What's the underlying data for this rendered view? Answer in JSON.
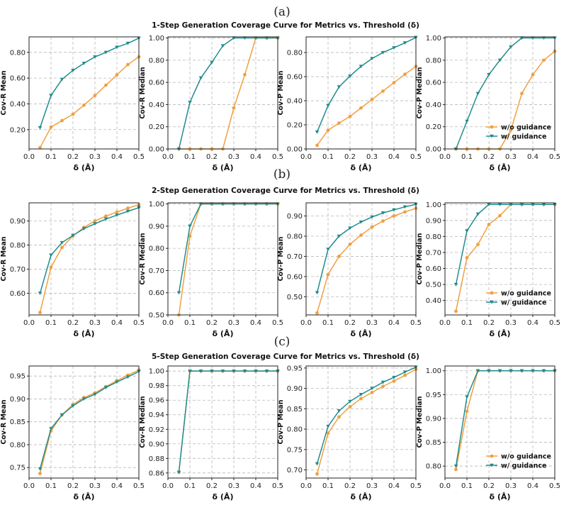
{
  "colors": {
    "without": "#f0a040",
    "with": "#218c8d"
  },
  "legend": [
    "w/o guidance",
    "w/ guidance"
  ],
  "panels": [
    {
      "tag": "(a)",
      "title": "1-Step Generation Coverage Curve for Metrics vs. Threshold (δ)"
    },
    {
      "tag": "(b)",
      "title": "2-Step Generation Coverage Curve for Metrics vs. Threshold (δ)"
    },
    {
      "tag": "(c)",
      "title": "5-Step Generation Coverage Curve for Metrics vs. Threshold (δ)"
    }
  ],
  "chart_data": [
    {
      "row": 0,
      "type": "line",
      "xlabel": "δ (Å)",
      "ylabel": "Cov-R Mean",
      "xlim": [
        0,
        0.5
      ],
      "ylim": [
        0.05,
        0.92
      ],
      "yticks": [
        0.2,
        0.4,
        0.6,
        0.8
      ],
      "ydec": 2,
      "x": [
        0.05,
        0.1,
        0.15,
        0.2,
        0.25,
        0.3,
        0.35,
        0.4,
        0.45,
        0.5
      ],
      "series": [
        {
          "name": "w/o guidance",
          "values": [
            0.06,
            0.22,
            0.27,
            0.32,
            0.39,
            0.465,
            0.545,
            0.625,
            0.705,
            0.765
          ]
        },
        {
          "name": "w/ guidance",
          "values": [
            0.215,
            0.465,
            0.59,
            0.66,
            0.715,
            0.765,
            0.8,
            0.84,
            0.87,
            0.91
          ]
        }
      ]
    },
    {
      "row": 0,
      "type": "line",
      "xlabel": "δ (Å)",
      "ylabel": "Cov-R Median",
      "xlim": [
        0,
        0.5
      ],
      "ylim": [
        0,
        1.01
      ],
      "yticks": [
        0.0,
        0.2,
        0.4,
        0.6,
        0.8,
        1.0
      ],
      "ydec": 2,
      "x": [
        0.05,
        0.1,
        0.15,
        0.2,
        0.25,
        0.3,
        0.35,
        0.4,
        0.45,
        0.5
      ],
      "series": [
        {
          "name": "w/o guidance",
          "values": [
            0,
            0,
            0,
            0,
            0,
            0.37,
            0.67,
            1.0,
            1.0,
            1.0
          ]
        },
        {
          "name": "w/ guidance",
          "values": [
            0,
            0.42,
            0.64,
            0.78,
            0.93,
            1.0,
            1.0,
            1.0,
            1.0,
            1.0
          ]
        }
      ]
    },
    {
      "row": 0,
      "type": "line",
      "xlabel": "δ (Å)",
      "ylabel": "Cov-P Mean",
      "xlim": [
        0,
        0.5
      ],
      "ylim": [
        0,
        0.93
      ],
      "yticks": [
        0.0,
        0.2,
        0.4,
        0.6,
        0.8
      ],
      "ydec": 2,
      "x": [
        0.05,
        0.1,
        0.15,
        0.2,
        0.25,
        0.3,
        0.35,
        0.4,
        0.45,
        0.5
      ],
      "series": [
        {
          "name": "w/o guidance",
          "values": [
            0.03,
            0.155,
            0.215,
            0.27,
            0.34,
            0.41,
            0.48,
            0.55,
            0.62,
            0.685
          ]
        },
        {
          "name": "w/ guidance",
          "values": [
            0.14,
            0.36,
            0.515,
            0.605,
            0.685,
            0.75,
            0.8,
            0.84,
            0.88,
            0.925
          ]
        }
      ]
    },
    {
      "row": 0,
      "type": "line",
      "xlabel": "δ (Å)",
      "ylabel": "Cov-P Median",
      "xlim": [
        0,
        0.5
      ],
      "ylim": [
        0,
        1.01
      ],
      "yticks": [
        0.0,
        0.2,
        0.4,
        0.6,
        0.8,
        1.0
      ],
      "ydec": 2,
      "legend": "lower-right",
      "x": [
        0.05,
        0.1,
        0.15,
        0.2,
        0.25,
        0.3,
        0.35,
        0.4,
        0.45,
        0.5
      ],
      "series": [
        {
          "name": "w/o guidance",
          "values": [
            0,
            0,
            0,
            0,
            0,
            0.17,
            0.5,
            0.67,
            0.8,
            0.88
          ]
        },
        {
          "name": "w/ guidance",
          "values": [
            0,
            0.25,
            0.5,
            0.67,
            0.8,
            0.92,
            1.0,
            1.0,
            1.0,
            1.0
          ]
        }
      ]
    },
    {
      "row": 1,
      "type": "line",
      "xlabel": "δ (Å)",
      "ylabel": "Cov-R Mean",
      "xlim": [
        0,
        0.5
      ],
      "ylim": [
        0.51,
        0.975
      ],
      "yticks": [
        0.6,
        0.7,
        0.8,
        0.9
      ],
      "ydec": 2,
      "x": [
        0.05,
        0.1,
        0.15,
        0.2,
        0.25,
        0.3,
        0.35,
        0.4,
        0.45,
        0.5
      ],
      "series": [
        {
          "name": "w/o guidance",
          "values": [
            0.52,
            0.708,
            0.79,
            0.838,
            0.873,
            0.9,
            0.92,
            0.937,
            0.953,
            0.967
          ]
        },
        {
          "name": "w/ guidance",
          "values": [
            0.6,
            0.758,
            0.81,
            0.84,
            0.868,
            0.888,
            0.908,
            0.924,
            0.94,
            0.955
          ]
        }
      ]
    },
    {
      "row": 1,
      "type": "line",
      "xlabel": "δ (Å)",
      "ylabel": "Cov-R Median",
      "xlim": [
        0,
        0.5
      ],
      "ylim": [
        0.5,
        1.005
      ],
      "yticks": [
        0.5,
        0.6,
        0.7,
        0.8,
        0.9,
        1.0
      ],
      "ydec": 2,
      "x": [
        0.05,
        0.1,
        0.15,
        0.2,
        0.25,
        0.3,
        0.35,
        0.4,
        0.45,
        0.5
      ],
      "series": [
        {
          "name": "w/o guidance",
          "values": [
            0.5,
            0.855,
            1.0,
            1.0,
            1.0,
            1.0,
            1.0,
            1.0,
            1.0,
            1.0
          ]
        },
        {
          "name": "w/ guidance",
          "values": [
            0.6,
            0.9,
            1.0,
            1.0,
            1.0,
            1.0,
            1.0,
            1.0,
            1.0,
            1.0
          ]
        }
      ]
    },
    {
      "row": 1,
      "type": "line",
      "xlabel": "δ (Å)",
      "ylabel": "Cov-P Mean",
      "xlim": [
        0,
        0.5
      ],
      "ylim": [
        0.41,
        0.965
      ],
      "yticks": [
        0.5,
        0.6,
        0.7,
        0.8,
        0.9
      ],
      "ydec": 2,
      "x": [
        0.05,
        0.1,
        0.15,
        0.2,
        0.25,
        0.3,
        0.35,
        0.4,
        0.45,
        0.5
      ],
      "series": [
        {
          "name": "w/o guidance",
          "values": [
            0.42,
            0.61,
            0.7,
            0.76,
            0.805,
            0.845,
            0.875,
            0.9,
            0.92,
            0.938
          ]
        },
        {
          "name": "w/ guidance",
          "values": [
            0.52,
            0.735,
            0.8,
            0.84,
            0.87,
            0.895,
            0.915,
            0.93,
            0.945,
            0.958
          ]
        }
      ]
    },
    {
      "row": 1,
      "type": "line",
      "xlabel": "δ (Å)",
      "ylabel": "Cov-P Median",
      "xlim": [
        0,
        0.5
      ],
      "ylim": [
        0.31,
        1.01
      ],
      "yticks": [
        0.4,
        0.5,
        0.6,
        0.7,
        0.8,
        0.9,
        1.0
      ],
      "ydec": 2,
      "legend": "lower-right",
      "x": [
        0.05,
        0.1,
        0.15,
        0.2,
        0.25,
        0.3,
        0.35,
        0.4,
        0.45,
        0.5
      ],
      "series": [
        {
          "name": "w/o guidance",
          "values": [
            0.333,
            0.667,
            0.75,
            0.875,
            0.93,
            1.0,
            1.0,
            1.0,
            1.0,
            1.0
          ]
        },
        {
          "name": "w/ guidance",
          "values": [
            0.5,
            0.835,
            0.94,
            1.0,
            1.0,
            1.0,
            1.0,
            1.0,
            1.0,
            1.0
          ]
        }
      ]
    },
    {
      "row": 2,
      "type": "line",
      "xlabel": "δ (Å)",
      "ylabel": "Cov-R Mean",
      "xlim": [
        0,
        0.5
      ],
      "ylim": [
        0.727,
        0.972
      ],
      "yticks": [
        0.75,
        0.8,
        0.85,
        0.9,
        0.95
      ],
      "ydec": 2,
      "x": [
        0.05,
        0.1,
        0.15,
        0.2,
        0.25,
        0.3,
        0.35,
        0.4,
        0.45,
        0.5
      ],
      "series": [
        {
          "name": "w/o guidance",
          "values": [
            0.737,
            0.83,
            0.865,
            0.888,
            0.903,
            0.913,
            0.927,
            0.94,
            0.952,
            0.963
          ]
        },
        {
          "name": "w/ guidance",
          "values": [
            0.747,
            0.835,
            0.865,
            0.885,
            0.9,
            0.91,
            0.925,
            0.937,
            0.948,
            0.96
          ]
        }
      ]
    },
    {
      "row": 2,
      "type": "line",
      "xlabel": "δ (Å)",
      "ylabel": "Cov-R Median",
      "xlim": [
        0,
        0.5
      ],
      "ylim": [
        0.853,
        1.007
      ],
      "yticks": [
        0.86,
        0.88,
        0.9,
        0.92,
        0.94,
        0.96,
        0.98,
        1.0
      ],
      "ydec": 2,
      "x": [
        0.05,
        0.1,
        0.15,
        0.2,
        0.25,
        0.3,
        0.35,
        0.4,
        0.45,
        0.5
      ],
      "series": [
        {
          "name": "w/o guidance",
          "values": [
            0.861,
            1.0,
            1.0,
            1.0,
            1.0,
            1.0,
            1.0,
            1.0,
            1.0,
            1.0
          ]
        },
        {
          "name": "w/ guidance",
          "values": [
            0.861,
            1.0,
            1.0,
            1.0,
            1.0,
            1.0,
            1.0,
            1.0,
            1.0,
            1.0
          ]
        }
      ]
    },
    {
      "row": 2,
      "type": "line",
      "xlabel": "δ (Å)",
      "ylabel": "Cov-P Mean",
      "xlim": [
        0,
        0.5
      ],
      "ylim": [
        0.68,
        0.955
      ],
      "yticks": [
        0.7,
        0.75,
        0.8,
        0.85,
        0.9,
        0.95
      ],
      "ydec": 2,
      "x": [
        0.05,
        0.1,
        0.15,
        0.2,
        0.25,
        0.3,
        0.35,
        0.4,
        0.45,
        0.5
      ],
      "series": [
        {
          "name": "w/o guidance",
          "values": [
            0.69,
            0.79,
            0.83,
            0.855,
            0.875,
            0.89,
            0.905,
            0.918,
            0.932,
            0.947
          ]
        },
        {
          "name": "w/ guidance",
          "values": [
            0.715,
            0.807,
            0.845,
            0.868,
            0.885,
            0.9,
            0.915,
            0.927,
            0.94,
            0.952
          ]
        }
      ]
    },
    {
      "row": 2,
      "type": "line",
      "xlabel": "δ (Å)",
      "ylabel": "Cov-P Median",
      "xlim": [
        0,
        0.5
      ],
      "ylim": [
        0.775,
        1.01
      ],
      "yticks": [
        0.8,
        0.85,
        0.9,
        0.95,
        1.0
      ],
      "ydec": 2,
      "legend": "lower-right",
      "x": [
        0.05,
        0.1,
        0.15,
        0.2,
        0.25,
        0.3,
        0.35,
        0.4,
        0.45,
        0.5
      ],
      "series": [
        {
          "name": "w/o guidance",
          "values": [
            0.793,
            0.915,
            1.0,
            1.0,
            1.0,
            1.0,
            1.0,
            1.0,
            1.0,
            1.0
          ]
        },
        {
          "name": "w/ guidance",
          "values": [
            0.8,
            0.945,
            1.0,
            1.0,
            1.0,
            1.0,
            1.0,
            1.0,
            1.0,
            1.0
          ]
        }
      ]
    }
  ]
}
